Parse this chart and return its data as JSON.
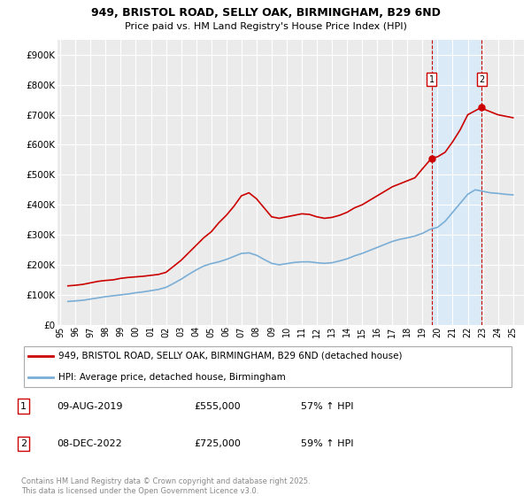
{
  "title1": "949, BRISTOL ROAD, SELLY OAK, BIRMINGHAM, B29 6ND",
  "title2": "Price paid vs. HM Land Registry's House Price Index (HPI)",
  "background_color": "#ffffff",
  "plot_bg_color": "#ebebeb",
  "grid_color": "#ffffff",
  "ylim": [
    0,
    950000
  ],
  "yticks": [
    0,
    100000,
    200000,
    300000,
    400000,
    500000,
    600000,
    700000,
    800000,
    900000
  ],
  "ytick_labels": [
    "£0",
    "£100K",
    "£200K",
    "£300K",
    "£400K",
    "£500K",
    "£600K",
    "£700K",
    "£800K",
    "£900K"
  ],
  "xlim_start": 1994.8,
  "xlim_end": 2025.7,
  "red_color": "#cc0000",
  "blue_color": "#7aaed6",
  "shade_color": "#daeaf7",
  "marker1_x": 2019.6,
  "marker1_y": 555000,
  "marker1_label": "1",
  "marker1_date": "09-AUG-2019",
  "marker1_price": "£555,000",
  "marker1_hpi": "57% ↑ HPI",
  "marker2_x": 2022.93,
  "marker2_y": 725000,
  "marker2_label": "2",
  "marker2_date": "08-DEC-2022",
  "marker2_price": "£725,000",
  "marker2_hpi": "59% ↑ HPI",
  "legend_line1": "949, BRISTOL ROAD, SELLY OAK, BIRMINGHAM, B29 6ND (detached house)",
  "legend_line2": "HPI: Average price, detached house, Birmingham",
  "footer": "Contains HM Land Registry data © Crown copyright and database right 2025.\nThis data is licensed under the Open Government Licence v3.0.",
  "red_x": [
    1995.5,
    1996.0,
    1996.5,
    1997.0,
    1997.5,
    1998.0,
    1998.5,
    1999.0,
    1999.5,
    2000.0,
    2000.5,
    2001.0,
    2001.5,
    2002.0,
    2002.5,
    2003.0,
    2003.5,
    2004.0,
    2004.5,
    2005.0,
    2005.5,
    2006.0,
    2006.5,
    2007.0,
    2007.5,
    2008.0,
    2008.5,
    2009.0,
    2009.5,
    2010.0,
    2010.5,
    2011.0,
    2011.5,
    2012.0,
    2012.5,
    2013.0,
    2013.5,
    2014.0,
    2014.5,
    2015.0,
    2015.5,
    2016.0,
    2016.5,
    2017.0,
    2017.5,
    2018.0,
    2018.5,
    2019.0,
    2019.6,
    2020.0,
    2020.5,
    2021.0,
    2021.5,
    2022.0,
    2022.93,
    2023.0,
    2023.5,
    2024.0,
    2024.5,
    2025.0
  ],
  "red_y": [
    130000,
    132000,
    135000,
    140000,
    145000,
    148000,
    150000,
    155000,
    158000,
    160000,
    162000,
    165000,
    168000,
    175000,
    195000,
    215000,
    240000,
    265000,
    290000,
    310000,
    340000,
    365000,
    395000,
    430000,
    440000,
    420000,
    390000,
    360000,
    355000,
    360000,
    365000,
    370000,
    368000,
    360000,
    355000,
    358000,
    365000,
    375000,
    390000,
    400000,
    415000,
    430000,
    445000,
    460000,
    470000,
    480000,
    490000,
    520000,
    555000,
    560000,
    575000,
    610000,
    650000,
    700000,
    725000,
    720000,
    710000,
    700000,
    695000,
    690000
  ],
  "blue_x": [
    1995.5,
    1996.0,
    1996.5,
    1997.0,
    1997.5,
    1998.0,
    1998.5,
    1999.0,
    1999.5,
    2000.0,
    2000.5,
    2001.0,
    2001.5,
    2002.0,
    2002.5,
    2003.0,
    2003.5,
    2004.0,
    2004.5,
    2005.0,
    2005.5,
    2006.0,
    2006.5,
    2007.0,
    2007.5,
    2008.0,
    2008.5,
    2009.0,
    2009.5,
    2010.0,
    2010.5,
    2011.0,
    2011.5,
    2012.0,
    2012.5,
    2013.0,
    2013.5,
    2014.0,
    2014.5,
    2015.0,
    2015.5,
    2016.0,
    2016.5,
    2017.0,
    2017.5,
    2018.0,
    2018.5,
    2019.0,
    2019.5,
    2020.0,
    2020.5,
    2021.0,
    2021.5,
    2022.0,
    2022.5,
    2023.0,
    2023.5,
    2024.0,
    2024.5,
    2025.0
  ],
  "blue_y": [
    78000,
    80000,
    82000,
    86000,
    90000,
    94000,
    97000,
    100000,
    103000,
    107000,
    110000,
    114000,
    118000,
    125000,
    138000,
    152000,
    168000,
    183000,
    196000,
    204000,
    210000,
    218000,
    228000,
    238000,
    240000,
    232000,
    218000,
    205000,
    200000,
    204000,
    208000,
    210000,
    210000,
    207000,
    205000,
    207000,
    213000,
    220000,
    230000,
    238000,
    248000,
    258000,
    268000,
    278000,
    285000,
    290000,
    296000,
    305000,
    318000,
    325000,
    345000,
    375000,
    405000,
    435000,
    450000,
    445000,
    440000,
    438000,
    435000,
    433000
  ]
}
